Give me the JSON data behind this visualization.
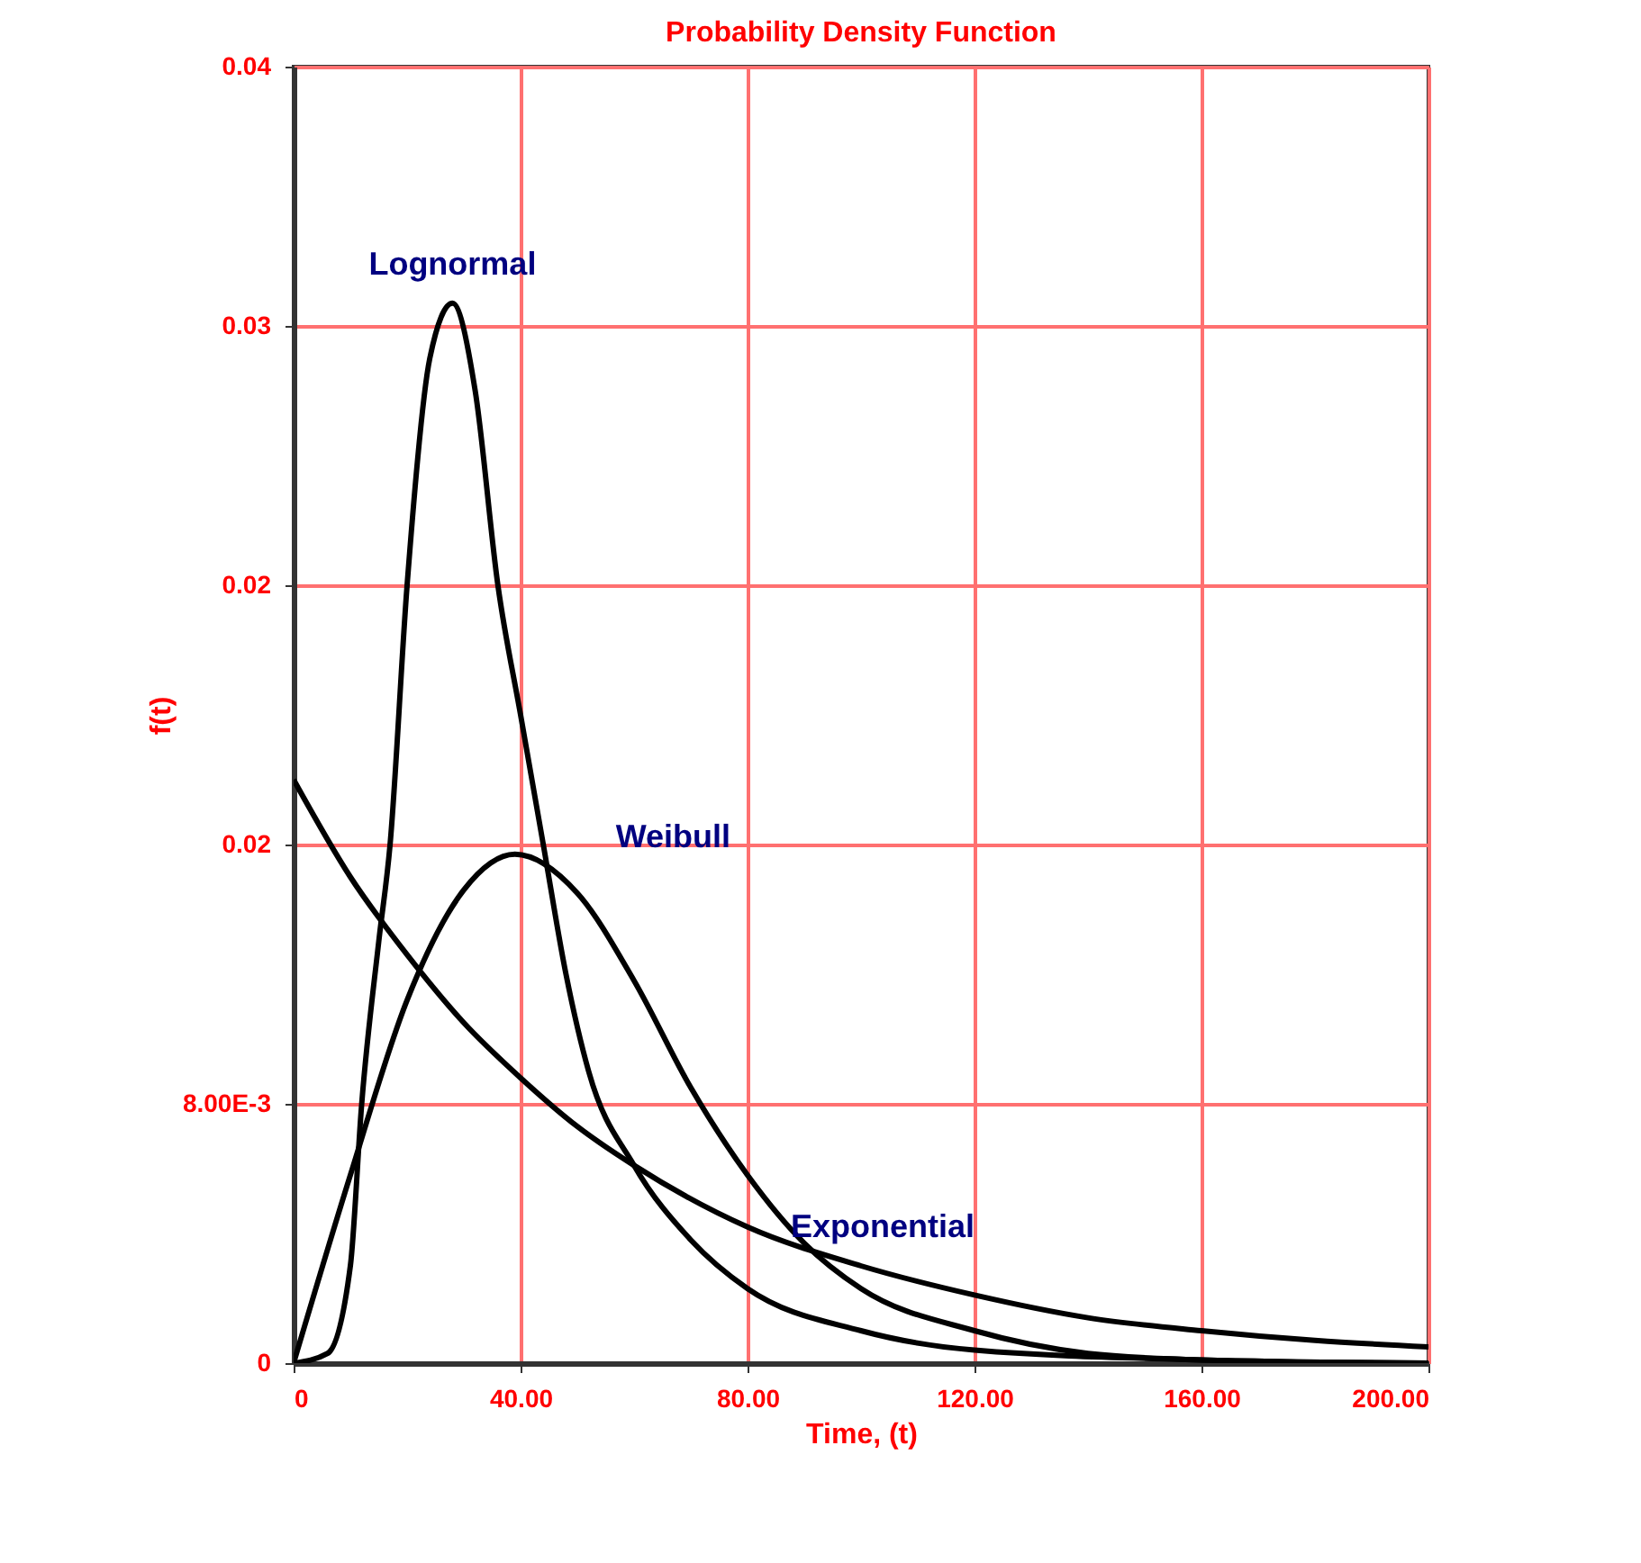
{
  "chart_data": {
    "type": "line",
    "title": "Probability Density Function",
    "xlabel": "Time, (t)",
    "ylabel": "f(t)",
    "xlim": [
      0,
      200
    ],
    "xticks": [
      0,
      {
        "value": 40,
        "label": "40.00"
      },
      {
        "value": 80,
        "label": "80.00"
      },
      {
        "value": 120,
        "label": "120.00"
      },
      {
        "value": 160,
        "label": "160.00"
      },
      {
        "value": 200,
        "label": "200.00"
      }
    ],
    "ylim": [
      0,
      0.04
    ],
    "yticks": [
      0,
      {
        "value": 0.008,
        "label": "8.00E-3"
      },
      {
        "value": 0.016,
        "label": "0.02"
      },
      {
        "value": 0.024,
        "label": "0.02"
      },
      {
        "value": 0.032,
        "label": "0.03"
      },
      0.04
    ],
    "grid": true,
    "marker": "none",
    "line_style": "solid",
    "series": [
      {
        "name": "Lognormal",
        "color": "#000000",
        "x": [
          0,
          6,
          10,
          12,
          15,
          17,
          20,
          24,
          28,
          32,
          36,
          40,
          44,
          48,
          52,
          60,
          70,
          80,
          100,
          120,
          160,
          200
        ],
        "values": [
          0,
          0.0003,
          0.003,
          0.008,
          0.013,
          0.016,
          0.024,
          0.031,
          0.0327,
          0.03,
          0.024,
          0.02,
          0.016,
          0.012,
          0.009,
          0.0061,
          0.0038,
          0.0023,
          0.001,
          0.0004,
          0.0001,
          0
        ]
      },
      {
        "name": "Weibull",
        "color": "#000000",
        "x": [
          0,
          10,
          20,
          30,
          39,
          50,
          60,
          70,
          80,
          90,
          100,
          120,
          140,
          160,
          200
        ],
        "values": [
          0,
          0.0058,
          0.0112,
          0.0146,
          0.0157,
          0.0145,
          0.0118,
          0.0085,
          0.0058,
          0.0037,
          0.0023,
          0.001,
          0.0003,
          0.0001,
          0
        ]
      },
      {
        "name": "Exponential",
        "color": "#000000",
        "x": [
          0,
          10,
          20,
          30,
          40,
          50,
          60,
          80,
          100,
          120,
          140,
          160,
          180,
          200
        ],
        "values": [
          0.018,
          0.015,
          0.0126,
          0.0105,
          0.0088,
          0.0073,
          0.0061,
          0.0042,
          0.003,
          0.0021,
          0.0014,
          0.001,
          0.0007,
          0.0005
        ]
      }
    ]
  }
}
